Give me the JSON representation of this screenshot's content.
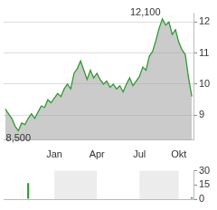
{
  "chart_data": [
    {
      "type": "line",
      "categories": [
        null,
        null,
        null,
        null,
        null,
        null,
        null,
        null,
        null,
        null,
        null,
        null,
        null,
        null,
        null,
        "Jan",
        null,
        null,
        null,
        null,
        null,
        null,
        null,
        null,
        null,
        null,
        null,
        null,
        "Apr",
        null,
        null,
        null,
        null,
        null,
        null,
        null,
        null,
        null,
        null,
        null,
        null,
        "Jul",
        null,
        null,
        null,
        null,
        null,
        null,
        null,
        null,
        null,
        null,
        null,
        "Okt",
        null,
        null,
        null,
        null
      ],
      "values": [
        9.2,
        9.05,
        8.9,
        8.65,
        8.5,
        8.75,
        8.7,
        8.9,
        9.05,
        8.9,
        9.1,
        9.3,
        9.25,
        9.5,
        9.4,
        9.55,
        9.7,
        9.6,
        9.85,
        10.0,
        9.85,
        10.35,
        10.5,
        10.75,
        10.45,
        10.15,
        10.45,
        10.2,
        10.35,
        10.15,
        10.0,
        10.1,
        9.9,
        10.0,
        9.85,
        9.95,
        9.75,
        10.0,
        10.2,
        9.95,
        10.1,
        10.25,
        10.55,
        10.45,
        10.9,
        11.05,
        11.4,
        11.8,
        12.1,
        11.9,
        12.0,
        11.6,
        11.75,
        11.35,
        11.1,
        10.95,
        10.2,
        9.6
      ],
      "color": "#339933",
      "ylim": [
        8.2,
        12.3
      ],
      "yticks": [
        9,
        10,
        11,
        12
      ],
      "grid": true,
      "annotations": [
        {
          "label": "12,100",
          "value": 12.1
        },
        {
          "label": "8,500",
          "value": 8.5
        }
      ]
    },
    {
      "type": "bar",
      "categories": [
        null,
        null,
        null,
        null,
        null,
        null,
        null,
        null,
        null,
        null,
        null,
        null,
        null,
        null,
        null,
        "Jan",
        null,
        null,
        null,
        null,
        null,
        null,
        null,
        null,
        null,
        null,
        null,
        null,
        "Apr",
        null,
        null,
        null,
        null,
        null,
        null,
        null,
        null,
        null,
        null,
        null,
        null,
        "Jul",
        null,
        null,
        null,
        null,
        null,
        null,
        null,
        null,
        null,
        null,
        null,
        "Okt",
        null,
        null,
        null,
        null
      ],
      "values": [
        null,
        null,
        null,
        null,
        null,
        null,
        null,
        17,
        null,
        null,
        null,
        null,
        null,
        null,
        null,
        null,
        null,
        null,
        null,
        null,
        null,
        null,
        null,
        null,
        null,
        null,
        null,
        null,
        null,
        null,
        null,
        null,
        null,
        null,
        null,
        null,
        null,
        null,
        null,
        null,
        null,
        null,
        null,
        null,
        null,
        null,
        null,
        null,
        null,
        null,
        null,
        null,
        null,
        null,
        null,
        null,
        null,
        2
      ],
      "color": "#339933",
      "ylim": [
        0,
        30
      ],
      "yticks": [
        0,
        15,
        30
      ],
      "tick_labels": "y"
    }
  ]
}
